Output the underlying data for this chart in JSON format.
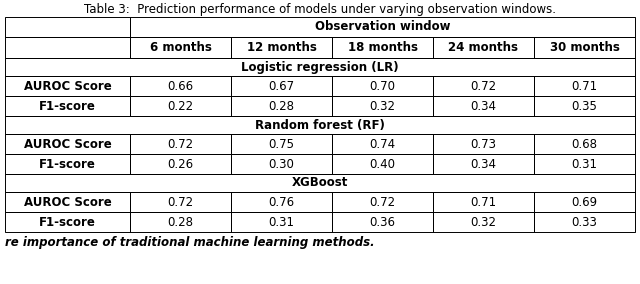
{
  "title": "Table 3:  Prediction performance of models under varying observation windows.",
  "col_header_row2": [
    "",
    "6 months",
    "12 months",
    "18 months",
    "24 months",
    "30 months"
  ],
  "sections": [
    {
      "section_label": "Logistic regression (LR)",
      "rows": [
        {
          "label": "AUROC Score",
          "values": [
            "0.66",
            "0.67",
            "0.70",
            "0.72",
            "0.71"
          ]
        },
        {
          "label": "F1-score",
          "values": [
            "0.22",
            "0.28",
            "0.32",
            "0.34",
            "0.35"
          ]
        }
      ]
    },
    {
      "section_label": "Random forest (RF)",
      "rows": [
        {
          "label": "AUROC Score",
          "values": [
            "0.72",
            "0.75",
            "0.74",
            "0.73",
            "0.68"
          ]
        },
        {
          "label": "F1-score",
          "values": [
            "0.26",
            "0.30",
            "0.40",
            "0.34",
            "0.31"
          ]
        }
      ]
    },
    {
      "section_label": "XGBoost",
      "rows": [
        {
          "label": "AUROC Score",
          "values": [
            "0.72",
            "0.76",
            "0.72",
            "0.71",
            "0.69"
          ]
        },
        {
          "label": "F1-score",
          "values": [
            "0.28",
            "0.31",
            "0.36",
            "0.32",
            "0.33"
          ]
        }
      ]
    }
  ],
  "bg_color": "#ffffff",
  "text_color": "#000000",
  "border_color": "#000000",
  "footer_text": "re importance of traditional machine learning methods.",
  "title_fontsize": 8.5,
  "header_fontsize": 8.5,
  "cell_fontsize": 8.5
}
